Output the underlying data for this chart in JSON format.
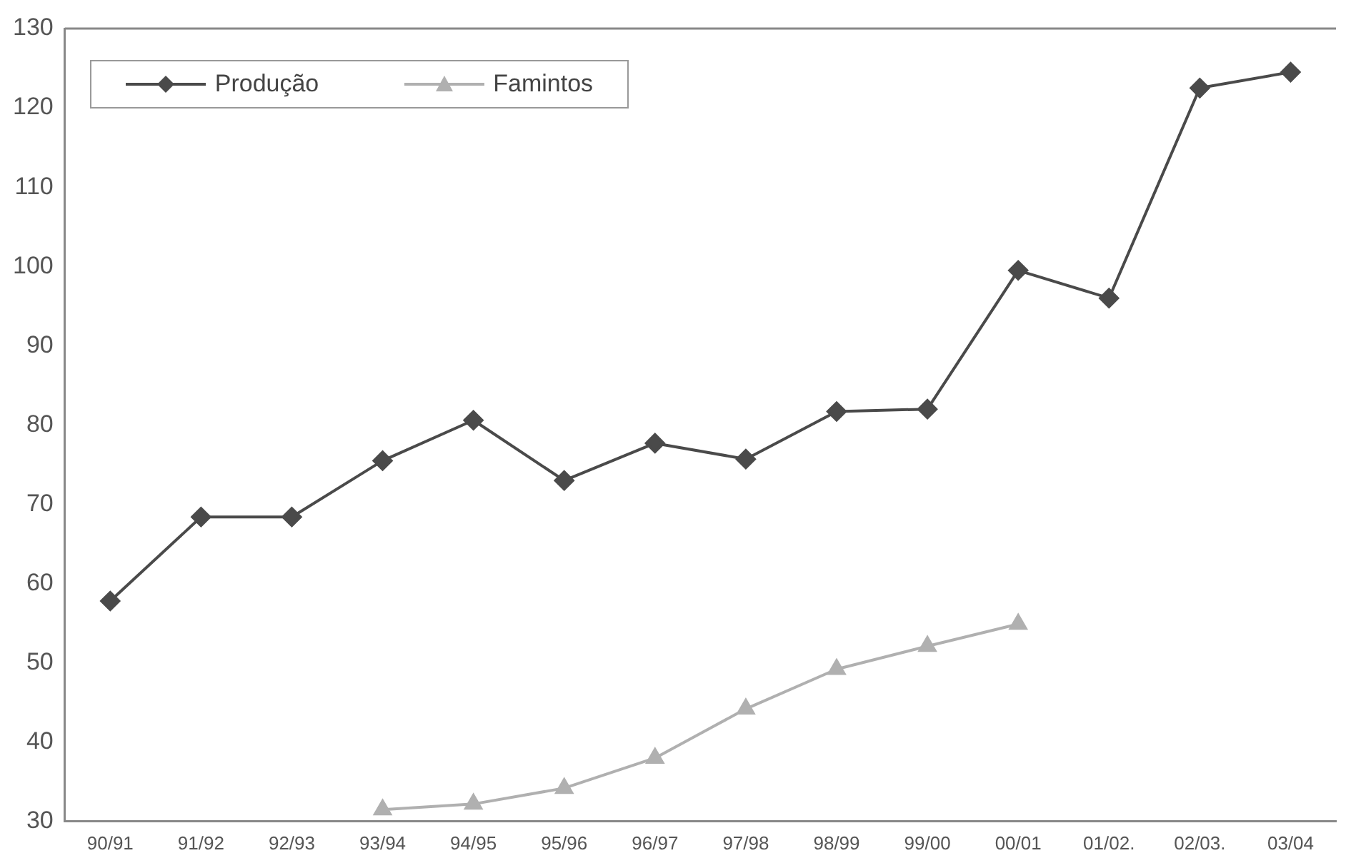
{
  "chart_data": {
    "type": "line",
    "categories": [
      "90/91",
      "91/92",
      "92/93",
      "93/94",
      "94/95",
      "95/96",
      "96/97",
      "97/98",
      "98/99",
      "99/00",
      "00/01",
      "01/02.",
      "02/03.",
      "03/04"
    ],
    "series": [
      {
        "name": "Produção",
        "color": "#4a4a4a",
        "marker": "diamond",
        "values": [
          57.8,
          68.4,
          68.4,
          75.5,
          80.6,
          73,
          77.7,
          75.7,
          81.7,
          82,
          99.5,
          96,
          122.5,
          124.5
        ]
      },
      {
        "name": "Famintos",
        "color": "#b0b0b0",
        "marker": "triangle",
        "values": [
          null,
          null,
          null,
          31.5,
          32.2,
          34.2,
          38,
          44.2,
          49.2,
          52.1,
          54.9,
          null,
          null,
          null
        ]
      }
    ],
    "ylim": [
      30,
      130
    ],
    "yticks": [
      30,
      40,
      50,
      60,
      70,
      80,
      90,
      100,
      110,
      120,
      130
    ],
    "grid": false,
    "legend": "top left",
    "line_style": "solid"
  }
}
